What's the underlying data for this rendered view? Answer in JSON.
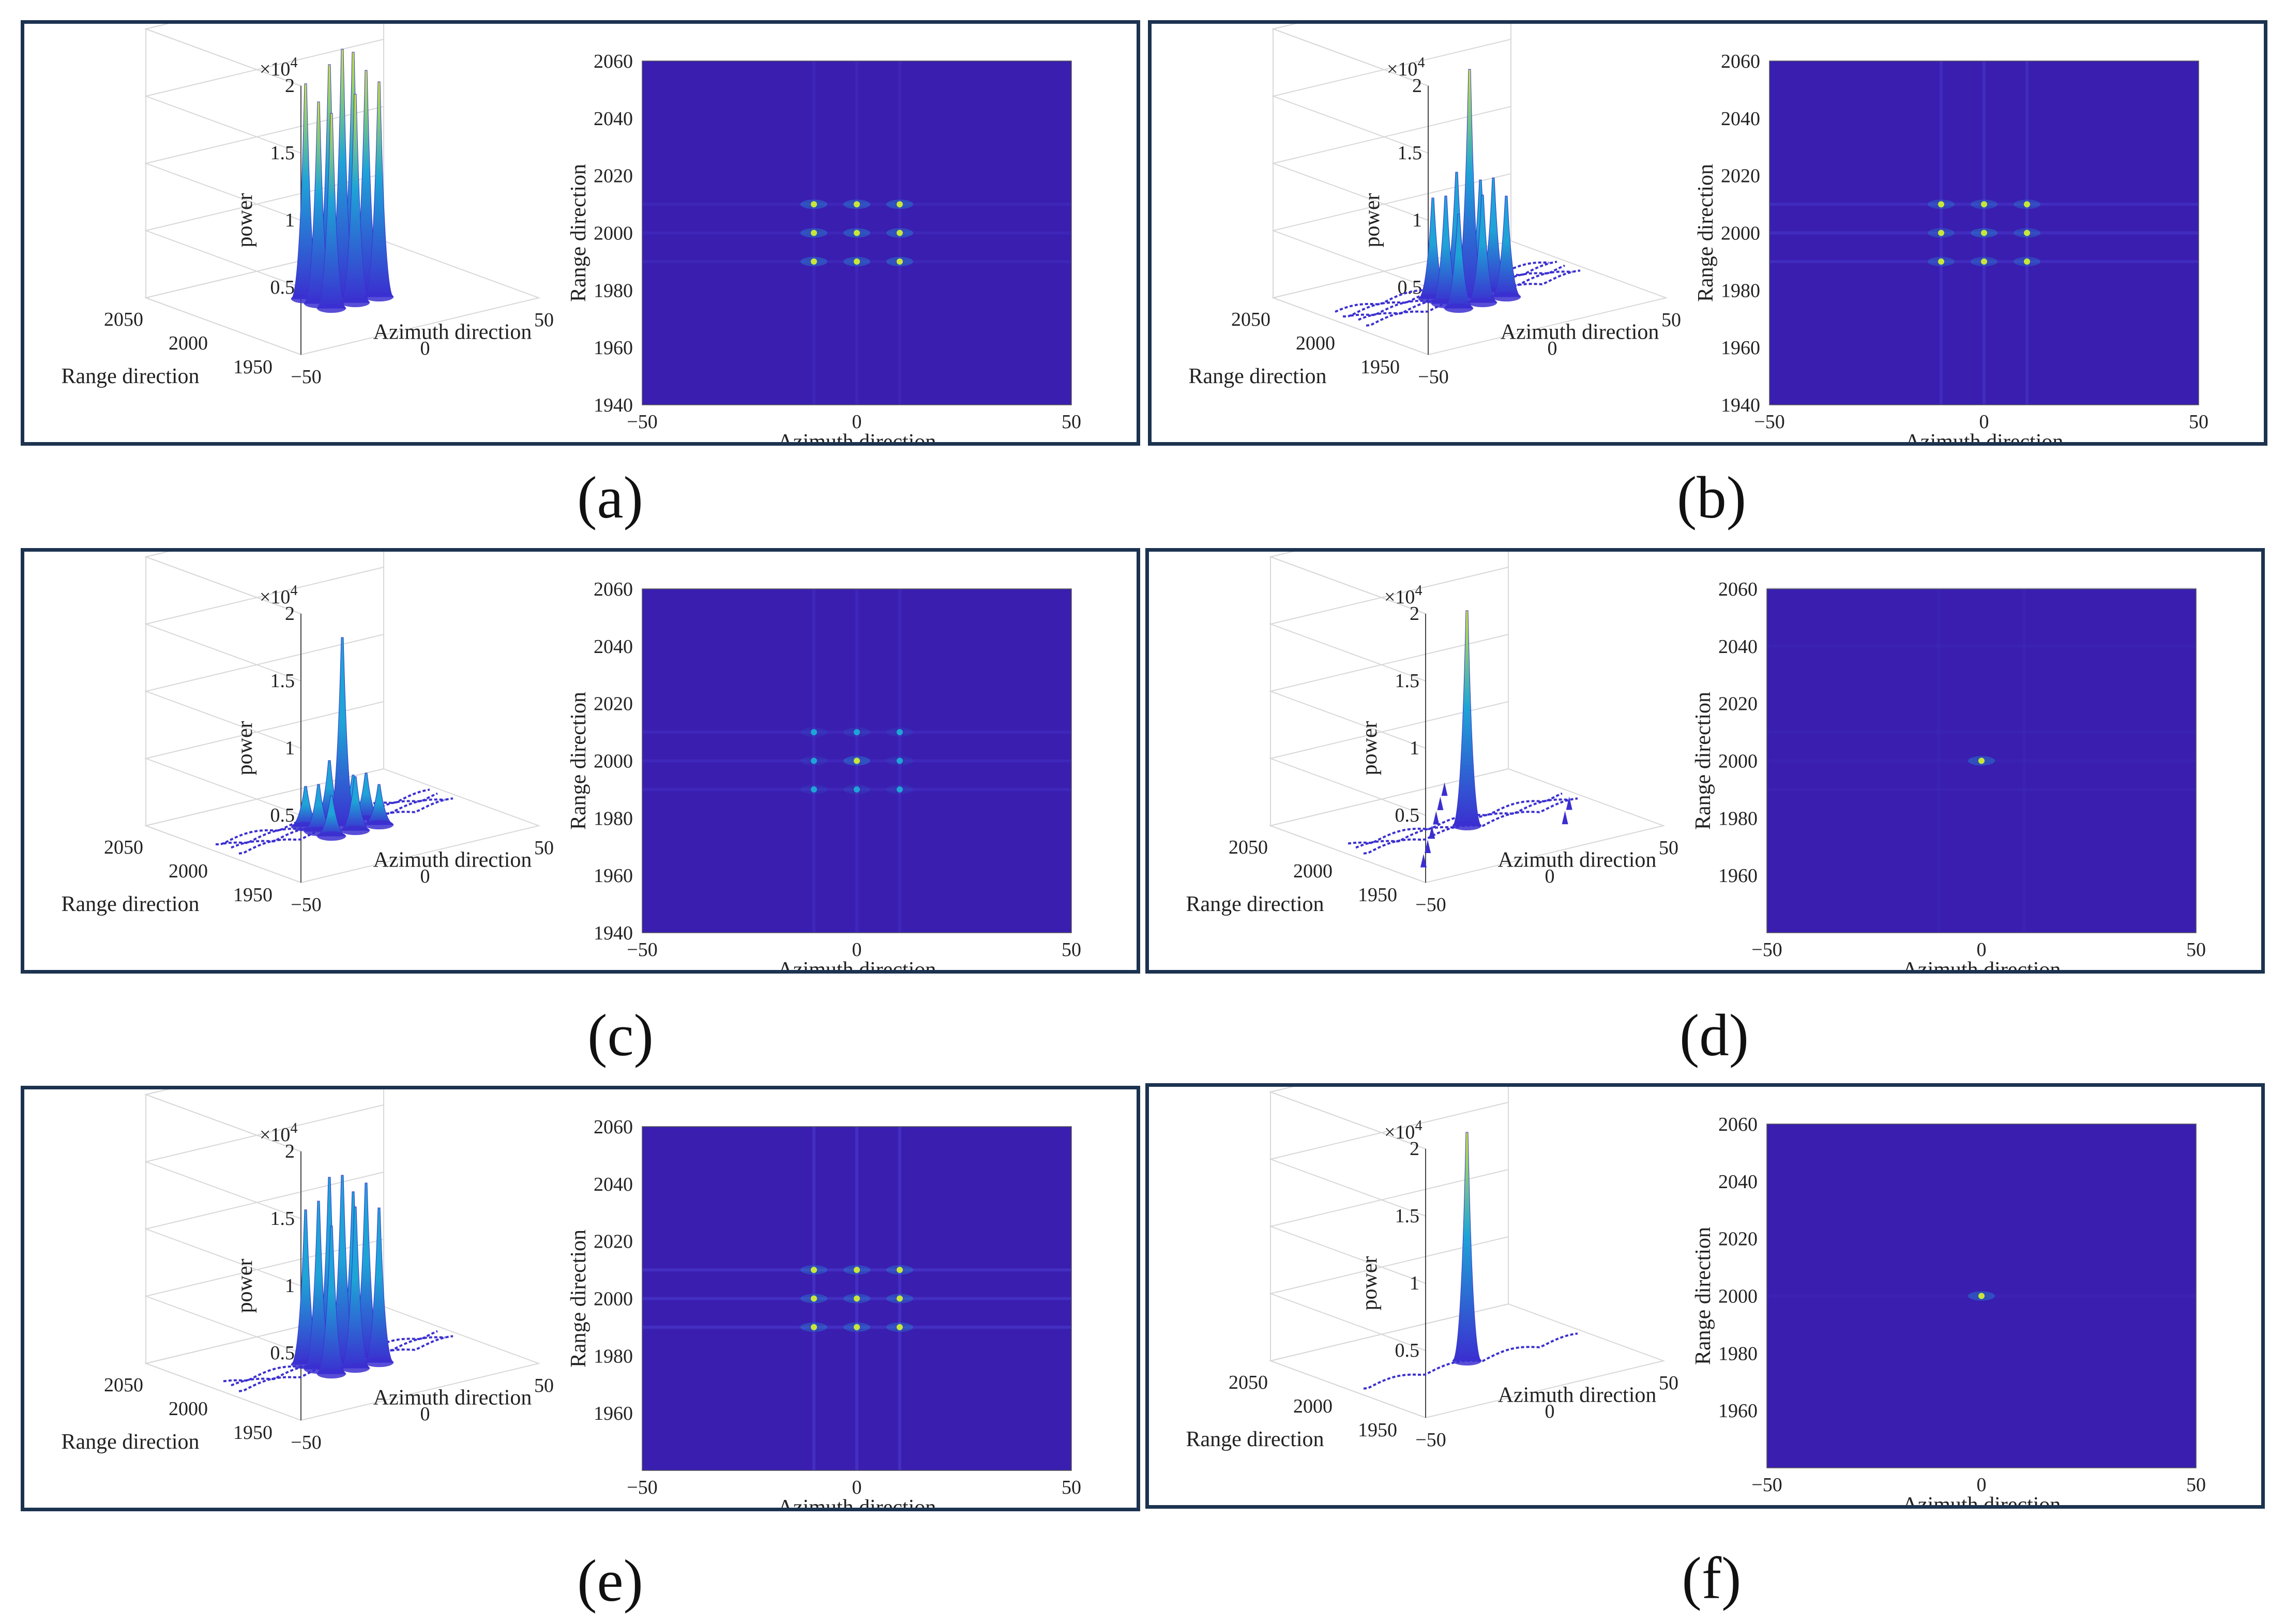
{
  "colors": {
    "heat_bg": "#3a1eb0",
    "heat_line": "#4a3ed0",
    "peak_low": "#3b2fd0",
    "peak_mid": "#1ea4d6",
    "peak_high": "#c8e63a",
    "frame": "#1c3350",
    "grid": "#d8d8d8"
  },
  "chart_data": [
    {
      "id": "a",
      "label": "(a)",
      "type": "surface+heatmap",
      "surface": {
        "zlabel": "power",
        "zexp": "×10",
        "zexp_sup": "4",
        "zticks": [
          "0.5",
          "1",
          "1.5",
          "2"
        ],
        "zlim": [
          0,
          20000
        ],
        "range_label": "Range direction",
        "range_ticks": [
          "2050",
          "2000",
          "1950"
        ],
        "azimuth_label": "Azimuth direction",
        "azimuth_ticks": [
          "−50",
          "0",
          "50"
        ],
        "peaks": [
          {
            "az": -10,
            "rg": 1990,
            "p": 14500
          },
          {
            "az": 0,
            "rg": 1990,
            "p": 15500
          },
          {
            "az": 10,
            "rg": 1990,
            "p": 16000
          },
          {
            "az": -10,
            "rg": 2000,
            "p": 15000
          },
          {
            "az": 0,
            "rg": 2000,
            "p": 18500
          },
          {
            "az": 10,
            "rg": 2000,
            "p": 16500
          },
          {
            "az": -10,
            "rg": 2010,
            "p": 16000
          },
          {
            "az": 0,
            "rg": 2010,
            "p": 17000
          },
          {
            "az": 10,
            "rg": 2010,
            "p": 17500
          }
        ],
        "streaks": 0,
        "spikes": 0
      },
      "heatmap": {
        "xlabel": "Azimuth direction",
        "ylabel": "Range direction",
        "xlim": [
          -50,
          50
        ],
        "ylim": [
          1940,
          2060
        ],
        "xticks": [
          "−50",
          "0",
          "50"
        ],
        "yticks": [
          "1940",
          "1960",
          "1980",
          "2000",
          "2020",
          "2040",
          "2060"
        ],
        "points": [
          {
            "x": -10,
            "y": 1990,
            "i": 1
          },
          {
            "x": 0,
            "y": 1990,
            "i": 1
          },
          {
            "x": 10,
            "y": 1990,
            "i": 1
          },
          {
            "x": -10,
            "y": 2000,
            "i": 1
          },
          {
            "x": 0,
            "y": 2000,
            "i": 1
          },
          {
            "x": 10,
            "y": 2000,
            "i": 1
          },
          {
            "x": -10,
            "y": 2010,
            "i": 1
          },
          {
            "x": 0,
            "y": 2010,
            "i": 1
          },
          {
            "x": 10,
            "y": 2010,
            "i": 1
          }
        ],
        "hlines": [
          1990,
          2000,
          2010
        ],
        "vlines": [
          -10,
          0,
          10
        ],
        "line_strength": 0.25
      }
    },
    {
      "id": "b",
      "label": "(b)",
      "type": "surface+heatmap",
      "surface": {
        "zlabel": "power",
        "zexp": "×10",
        "zexp_sup": "4",
        "zticks": [
          "0.5",
          "1",
          "1.5",
          "2"
        ],
        "zlim": [
          0,
          20000
        ],
        "range_label": "Range direction",
        "range_ticks": [
          "2050",
          "2000",
          "1950"
        ],
        "azimuth_label": "Azimuth direction",
        "azimuth_ticks": [
          "−50",
          "0",
          "50"
        ],
        "peaks": [
          {
            "az": -10,
            "rg": 1990,
            "p": 7000
          },
          {
            "az": 0,
            "rg": 1990,
            "p": 8000
          },
          {
            "az": 10,
            "rg": 1990,
            "p": 7500
          },
          {
            "az": -10,
            "rg": 2000,
            "p": 8000
          },
          {
            "az": 0,
            "rg": 2000,
            "p": 17000
          },
          {
            "az": 10,
            "rg": 2000,
            "p": 8500
          },
          {
            "az": -10,
            "rg": 2010,
            "p": 7500
          },
          {
            "az": 0,
            "rg": 2010,
            "p": 9000
          },
          {
            "az": 10,
            "rg": 2010,
            "p": 8000
          }
        ],
        "streaks": 5,
        "spikes": 0
      },
      "heatmap": {
        "xlabel": "Azimuth direction",
        "ylabel": "Range direction",
        "xlim": [
          -50,
          50
        ],
        "ylim": [
          1940,
          2060
        ],
        "xticks": [
          "−50",
          "0",
          "50"
        ],
        "yticks": [
          "1940",
          "1960",
          "1980",
          "2000",
          "2020",
          "2040",
          "2060"
        ],
        "points": [
          {
            "x": -10,
            "y": 1990,
            "i": 0.8
          },
          {
            "x": 0,
            "y": 1990,
            "i": 0.8
          },
          {
            "x": 10,
            "y": 1990,
            "i": 0.8
          },
          {
            "x": -10,
            "y": 2000,
            "i": 0.8
          },
          {
            "x": 0,
            "y": 2000,
            "i": 1
          },
          {
            "x": 10,
            "y": 2000,
            "i": 0.8
          },
          {
            "x": -10,
            "y": 2010,
            "i": 0.8
          },
          {
            "x": 0,
            "y": 2010,
            "i": 0.8
          },
          {
            "x": 10,
            "y": 2010,
            "i": 0.8
          }
        ],
        "hlines": [
          1990,
          2000,
          2010
        ],
        "vlines": [
          -10,
          0,
          10
        ],
        "line_strength": 0.45
      }
    },
    {
      "id": "c",
      "label": "(c)",
      "type": "surface+heatmap",
      "surface": {
        "zlabel": "power",
        "zexp": "×10",
        "zexp_sup": "4",
        "zticks": [
          "0.5",
          "1",
          "1.5",
          "2"
        ],
        "zlim": [
          0,
          20000
        ],
        "range_label": "Range direction",
        "range_ticks": [
          "2050",
          "2000",
          "1950"
        ],
        "azimuth_label": "Azimuth direction",
        "azimuth_ticks": [
          "−50",
          "0",
          "50"
        ],
        "peaks": [
          {
            "az": -10,
            "rg": 1990,
            "p": 3000
          },
          {
            "az": 0,
            "rg": 1990,
            "p": 4000
          },
          {
            "az": 10,
            "rg": 1990,
            "p": 3000
          },
          {
            "az": -10,
            "rg": 2000,
            "p": 3500
          },
          {
            "az": 0,
            "rg": 2000,
            "p": 14000
          },
          {
            "az": 10,
            "rg": 2000,
            "p": 3500
          },
          {
            "az": -10,
            "rg": 2010,
            "p": 3000
          },
          {
            "az": 0,
            "rg": 2010,
            "p": 4500
          },
          {
            "az": 10,
            "rg": 2010,
            "p": 3000
          }
        ],
        "streaks": 4,
        "spikes": 0
      },
      "heatmap": {
        "xlabel": "Azimuth direction",
        "ylabel": "Range direction",
        "xlim": [
          -50,
          50
        ],
        "ylim": [
          1940,
          2060
        ],
        "xticks": [
          "−50",
          "0",
          "50"
        ],
        "yticks": [
          "1940",
          "1960",
          "1980",
          "2000",
          "2020",
          "2040",
          "2060"
        ],
        "points": [
          {
            "x": -10,
            "y": 1990,
            "i": 0.3
          },
          {
            "x": 0,
            "y": 1990,
            "i": 0.35
          },
          {
            "x": 10,
            "y": 1990,
            "i": 0.3
          },
          {
            "x": -10,
            "y": 2000,
            "i": 0.3
          },
          {
            "x": 0,
            "y": 2000,
            "i": 1
          },
          {
            "x": 10,
            "y": 2000,
            "i": 0.3
          },
          {
            "x": -10,
            "y": 2010,
            "i": 0.3
          },
          {
            "x": 0,
            "y": 2010,
            "i": 0.35
          },
          {
            "x": 10,
            "y": 2010,
            "i": 0.3
          }
        ],
        "hlines": [
          1990,
          2000,
          2010
        ],
        "vlines": [
          -10,
          0,
          10
        ],
        "line_strength": 0.3
      }
    },
    {
      "id": "d",
      "label": "(d)",
      "type": "surface+heatmap",
      "surface": {
        "zlabel": "power",
        "zexp": "×10",
        "zexp_sup": "4",
        "zticks": [
          "0.5",
          "1",
          "1.5",
          "2"
        ],
        "zlim": [
          0,
          20000
        ],
        "range_label": "Range direction",
        "range_ticks": [
          "2050",
          "2000",
          "1950"
        ],
        "azimuth_label": "Azimuth direction",
        "azimuth_ticks": [
          "−50",
          "0",
          "50"
        ],
        "peaks": [
          {
            "az": 0,
            "rg": 2000,
            "p": 16000
          }
        ],
        "streaks": 3,
        "spikes": 8
      },
      "heatmap": {
        "xlabel": "Azimuth direction",
        "ylabel": "Range direction",
        "xlim": [
          -50,
          50
        ],
        "ylim": [
          1940,
          2060
        ],
        "xticks": [
          "−50",
          "0",
          "50"
        ],
        "yticks": [
          "1960",
          "1980",
          "2000",
          "2020",
          "2040",
          "2060"
        ],
        "points": [
          {
            "x": 0,
            "y": 2000,
            "i": 1
          }
        ],
        "hlines": [
          1990,
          2000,
          2010,
          2040,
          2060
        ],
        "vlines": [
          -10,
          10
        ],
        "line_strength": 0.12
      }
    },
    {
      "id": "e",
      "label": "(e)",
      "type": "surface+heatmap",
      "surface": {
        "zlabel": "power",
        "zexp": "×10",
        "zexp_sup": "4",
        "zticks": [
          "0.5",
          "1",
          "1.5",
          "2"
        ],
        "zlim": [
          0,
          20000
        ],
        "range_label": "Range direction",
        "range_ticks": [
          "2050",
          "2000",
          "1950"
        ],
        "azimuth_label": "Azimuth direction",
        "azimuth_ticks": [
          "−50",
          "0",
          "50"
        ],
        "peaks": [
          {
            "az": -10,
            "rg": 1990,
            "p": 11000
          },
          {
            "az": 0,
            "rg": 1990,
            "p": 12000
          },
          {
            "az": 10,
            "rg": 1990,
            "p": 11500
          },
          {
            "az": -10,
            "rg": 2000,
            "p": 12500
          },
          {
            "az": 0,
            "rg": 2000,
            "p": 14000
          },
          {
            "az": 10,
            "rg": 2000,
            "p": 13000
          },
          {
            "az": -10,
            "rg": 2010,
            "p": 11500
          },
          {
            "az": 0,
            "rg": 2010,
            "p": 13500
          },
          {
            "az": 10,
            "rg": 2010,
            "p": 12000
          }
        ],
        "streaks": 3,
        "spikes": 0
      },
      "heatmap": {
        "xlabel": "Azimuth direction",
        "ylabel": "Range direction",
        "xlim": [
          -50,
          50
        ],
        "ylim": [
          1940,
          2060
        ],
        "xticks": [
          "−50",
          "0",
          "50"
        ],
        "yticks": [
          "1960",
          "1980",
          "2000",
          "2020",
          "2040",
          "2060"
        ],
        "points": [
          {
            "x": -10,
            "y": 1990,
            "i": 0.9
          },
          {
            "x": 0,
            "y": 1990,
            "i": 0.9
          },
          {
            "x": 10,
            "y": 1990,
            "i": 0.9
          },
          {
            "x": -10,
            "y": 2000,
            "i": 0.9
          },
          {
            "x": 0,
            "y": 2000,
            "i": 0.9
          },
          {
            "x": 10,
            "y": 2000,
            "i": 0.9
          },
          {
            "x": -10,
            "y": 2010,
            "i": 0.9
          },
          {
            "x": 0,
            "y": 2010,
            "i": 0.9
          },
          {
            "x": 10,
            "y": 2010,
            "i": 0.9
          }
        ],
        "hlines": [
          1990,
          2000,
          2010
        ],
        "vlines": [
          -10,
          0,
          10
        ],
        "line_strength": 0.55
      }
    },
    {
      "id": "f",
      "label": "(f)",
      "type": "surface+heatmap",
      "surface": {
        "zlabel": "power",
        "zexp": "×10",
        "zexp_sup": "4",
        "zticks": [
          "0.5",
          "1",
          "1.5",
          "2"
        ],
        "zlim": [
          0,
          20000
        ],
        "range_label": "Range direction",
        "range_ticks": [
          "2050",
          "2000",
          "1950"
        ],
        "azimuth_label": "Azimuth direction",
        "azimuth_ticks": [
          "−50",
          "0",
          "50"
        ],
        "peaks": [
          {
            "az": 0,
            "rg": 2000,
            "p": 17000
          }
        ],
        "streaks": 1,
        "spikes": 0
      },
      "heatmap": {
        "xlabel": "Azimuth direction",
        "ylabel": "Range direction",
        "xlim": [
          -50,
          50
        ],
        "ylim": [
          1940,
          2060
        ],
        "xticks": [
          "−50",
          "0",
          "50"
        ],
        "yticks": [
          "1960",
          "1980",
          "2000",
          "2020",
          "2040",
          "2060"
        ],
        "points": [
          {
            "x": 0,
            "y": 2000,
            "i": 1
          }
        ],
        "hlines": [
          2000
        ],
        "vlines": [],
        "line_strength": 0.15
      }
    }
  ]
}
